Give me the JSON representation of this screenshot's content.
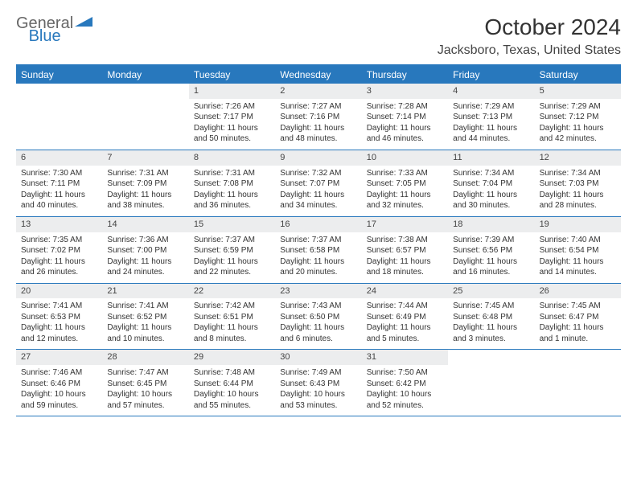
{
  "logo": {
    "text1": "General",
    "text2": "Blue"
  },
  "title": "October 2024",
  "location": "Jacksboro, Texas, United States",
  "styles": {
    "accent_color": "#2878bd",
    "header_text_color": "#ffffff",
    "daynum_bg": "#ecedee",
    "body_color": "#333333",
    "font_family": "Arial",
    "title_fontsize": 28,
    "location_fontsize": 16,
    "dayheader_fontsize": 12,
    "cell_fontsize": 10
  },
  "day_headers": [
    "Sunday",
    "Monday",
    "Tuesday",
    "Wednesday",
    "Thursday",
    "Friday",
    "Saturday"
  ],
  "weeks": [
    [
      {
        "empty": true
      },
      {
        "empty": true
      },
      {
        "num": "1",
        "sunrise": "Sunrise: 7:26 AM",
        "sunset": "Sunset: 7:17 PM",
        "daylight": "Daylight: 11 hours and 50 minutes."
      },
      {
        "num": "2",
        "sunrise": "Sunrise: 7:27 AM",
        "sunset": "Sunset: 7:16 PM",
        "daylight": "Daylight: 11 hours and 48 minutes."
      },
      {
        "num": "3",
        "sunrise": "Sunrise: 7:28 AM",
        "sunset": "Sunset: 7:14 PM",
        "daylight": "Daylight: 11 hours and 46 minutes."
      },
      {
        "num": "4",
        "sunrise": "Sunrise: 7:29 AM",
        "sunset": "Sunset: 7:13 PM",
        "daylight": "Daylight: 11 hours and 44 minutes."
      },
      {
        "num": "5",
        "sunrise": "Sunrise: 7:29 AM",
        "sunset": "Sunset: 7:12 PM",
        "daylight": "Daylight: 11 hours and 42 minutes."
      }
    ],
    [
      {
        "num": "6",
        "sunrise": "Sunrise: 7:30 AM",
        "sunset": "Sunset: 7:11 PM",
        "daylight": "Daylight: 11 hours and 40 minutes."
      },
      {
        "num": "7",
        "sunrise": "Sunrise: 7:31 AM",
        "sunset": "Sunset: 7:09 PM",
        "daylight": "Daylight: 11 hours and 38 minutes."
      },
      {
        "num": "8",
        "sunrise": "Sunrise: 7:31 AM",
        "sunset": "Sunset: 7:08 PM",
        "daylight": "Daylight: 11 hours and 36 minutes."
      },
      {
        "num": "9",
        "sunrise": "Sunrise: 7:32 AM",
        "sunset": "Sunset: 7:07 PM",
        "daylight": "Daylight: 11 hours and 34 minutes."
      },
      {
        "num": "10",
        "sunrise": "Sunrise: 7:33 AM",
        "sunset": "Sunset: 7:05 PM",
        "daylight": "Daylight: 11 hours and 32 minutes."
      },
      {
        "num": "11",
        "sunrise": "Sunrise: 7:34 AM",
        "sunset": "Sunset: 7:04 PM",
        "daylight": "Daylight: 11 hours and 30 minutes."
      },
      {
        "num": "12",
        "sunrise": "Sunrise: 7:34 AM",
        "sunset": "Sunset: 7:03 PM",
        "daylight": "Daylight: 11 hours and 28 minutes."
      }
    ],
    [
      {
        "num": "13",
        "sunrise": "Sunrise: 7:35 AM",
        "sunset": "Sunset: 7:02 PM",
        "daylight": "Daylight: 11 hours and 26 minutes."
      },
      {
        "num": "14",
        "sunrise": "Sunrise: 7:36 AM",
        "sunset": "Sunset: 7:00 PM",
        "daylight": "Daylight: 11 hours and 24 minutes."
      },
      {
        "num": "15",
        "sunrise": "Sunrise: 7:37 AM",
        "sunset": "Sunset: 6:59 PM",
        "daylight": "Daylight: 11 hours and 22 minutes."
      },
      {
        "num": "16",
        "sunrise": "Sunrise: 7:37 AM",
        "sunset": "Sunset: 6:58 PM",
        "daylight": "Daylight: 11 hours and 20 minutes."
      },
      {
        "num": "17",
        "sunrise": "Sunrise: 7:38 AM",
        "sunset": "Sunset: 6:57 PM",
        "daylight": "Daylight: 11 hours and 18 minutes."
      },
      {
        "num": "18",
        "sunrise": "Sunrise: 7:39 AM",
        "sunset": "Sunset: 6:56 PM",
        "daylight": "Daylight: 11 hours and 16 minutes."
      },
      {
        "num": "19",
        "sunrise": "Sunrise: 7:40 AM",
        "sunset": "Sunset: 6:54 PM",
        "daylight": "Daylight: 11 hours and 14 minutes."
      }
    ],
    [
      {
        "num": "20",
        "sunrise": "Sunrise: 7:41 AM",
        "sunset": "Sunset: 6:53 PM",
        "daylight": "Daylight: 11 hours and 12 minutes."
      },
      {
        "num": "21",
        "sunrise": "Sunrise: 7:41 AM",
        "sunset": "Sunset: 6:52 PM",
        "daylight": "Daylight: 11 hours and 10 minutes."
      },
      {
        "num": "22",
        "sunrise": "Sunrise: 7:42 AM",
        "sunset": "Sunset: 6:51 PM",
        "daylight": "Daylight: 11 hours and 8 minutes."
      },
      {
        "num": "23",
        "sunrise": "Sunrise: 7:43 AM",
        "sunset": "Sunset: 6:50 PM",
        "daylight": "Daylight: 11 hours and 6 minutes."
      },
      {
        "num": "24",
        "sunrise": "Sunrise: 7:44 AM",
        "sunset": "Sunset: 6:49 PM",
        "daylight": "Daylight: 11 hours and 5 minutes."
      },
      {
        "num": "25",
        "sunrise": "Sunrise: 7:45 AM",
        "sunset": "Sunset: 6:48 PM",
        "daylight": "Daylight: 11 hours and 3 minutes."
      },
      {
        "num": "26",
        "sunrise": "Sunrise: 7:45 AM",
        "sunset": "Sunset: 6:47 PM",
        "daylight": "Daylight: 11 hours and 1 minute."
      }
    ],
    [
      {
        "num": "27",
        "sunrise": "Sunrise: 7:46 AM",
        "sunset": "Sunset: 6:46 PM",
        "daylight": "Daylight: 10 hours and 59 minutes."
      },
      {
        "num": "28",
        "sunrise": "Sunrise: 7:47 AM",
        "sunset": "Sunset: 6:45 PM",
        "daylight": "Daylight: 10 hours and 57 minutes."
      },
      {
        "num": "29",
        "sunrise": "Sunrise: 7:48 AM",
        "sunset": "Sunset: 6:44 PM",
        "daylight": "Daylight: 10 hours and 55 minutes."
      },
      {
        "num": "30",
        "sunrise": "Sunrise: 7:49 AM",
        "sunset": "Sunset: 6:43 PM",
        "daylight": "Daylight: 10 hours and 53 minutes."
      },
      {
        "num": "31",
        "sunrise": "Sunrise: 7:50 AM",
        "sunset": "Sunset: 6:42 PM",
        "daylight": "Daylight: 10 hours and 52 minutes."
      },
      {
        "empty": true
      },
      {
        "empty": true
      }
    ]
  ]
}
